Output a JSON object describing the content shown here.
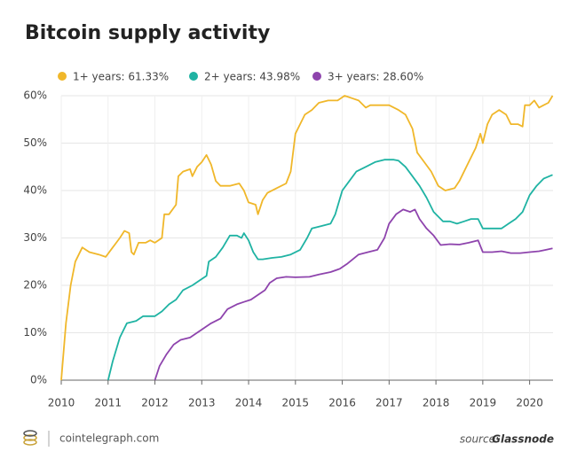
{
  "chart_data": {
    "type": "line",
    "title": "Bitcoin supply activity",
    "xlim": [
      2010,
      2020.5
    ],
    "xticks": [
      2010,
      2011,
      2012,
      2013,
      2014,
      2015,
      2016,
      2017,
      2018,
      2019,
      2020
    ],
    "ylim": [
      0,
      60
    ],
    "yticks": [
      {
        "value": 0,
        "label": "0%"
      },
      {
        "value": 10,
        "label": "10%"
      },
      {
        "value": 20,
        "label": "20%"
      },
      {
        "value": 30,
        "label": "30%"
      },
      {
        "value": 40,
        "label": "40%"
      },
      {
        "value": 50,
        "label": "50%"
      },
      {
        "value": 60,
        "label": "60%"
      }
    ],
    "grid": true,
    "footer_site": "cointelegraph.com",
    "source_prefix": "source:",
    "source_name": "Glassnode",
    "series": [
      {
        "name": "1+ years: 61.33%",
        "color": "#f0b72a",
        "x": [
          2010.0,
          2010.1,
          2010.2,
          2010.3,
          2010.45,
          2010.6,
          2010.8,
          2010.95,
          2011.1,
          2011.25,
          2011.35,
          2011.45,
          2011.5,
          2011.55,
          2011.65,
          2011.8,
          2011.9,
          2012.0,
          2012.15,
          2012.2,
          2012.3,
          2012.45,
          2012.5,
          2012.6,
          2012.75,
          2012.8,
          2012.9,
          2013.0,
          2013.1,
          2013.2,
          2013.3,
          2013.4,
          2013.6,
          2013.8,
          2013.9,
          2014.0,
          2014.15,
          2014.2,
          2014.3,
          2014.4,
          2014.6,
          2014.8,
          2014.9,
          2015.0,
          2015.1,
          2015.2,
          2015.35,
          2015.5,
          2015.7,
          2015.9,
          2016.05,
          2016.2,
          2016.35,
          2016.5,
          2016.6,
          2016.8,
          2017.0,
          2017.2,
          2017.35,
          2017.5,
          2017.6,
          2017.75,
          2017.9,
          2018.05,
          2018.2,
          2018.4,
          2018.5,
          2018.7,
          2018.85,
          2018.95,
          2019.0,
          2019.1,
          2019.2,
          2019.35,
          2019.5,
          2019.6,
          2019.75,
          2019.85,
          2019.9,
          2020.0,
          2020.1,
          2020.2,
          2020.3,
          2020.4,
          2020.49
        ],
        "values": [
          0,
          12,
          20,
          25,
          28,
          27,
          26.5,
          26,
          28,
          30,
          31.5,
          31,
          27,
          26.5,
          29,
          29,
          29.5,
          29,
          30,
          35,
          35,
          37,
          43,
          44,
          44.5,
          43,
          45,
          46,
          47.5,
          45.5,
          42,
          41,
          41,
          41.5,
          40,
          37.5,
          37,
          35,
          38,
          39.5,
          40.5,
          41.5,
          44,
          52,
          54,
          56,
          57,
          58.5,
          59,
          59,
          60,
          59.5,
          59,
          57.5,
          58,
          58,
          58,
          57,
          56,
          53,
          48,
          46,
          44,
          41,
          40,
          40.5,
          42,
          46,
          49,
          52,
          50,
          54,
          56,
          57,
          56,
          54,
          54,
          53.5,
          58,
          58,
          59,
          57.5,
          58,
          58.5,
          60
        ]
      },
      {
        "name": "2+ years: 43.98%",
        "color": "#1fb3a3",
        "x": [
          2011.0,
          2011.1,
          2011.25,
          2011.4,
          2011.6,
          2011.75,
          2011.9,
          2012.0,
          2012.15,
          2012.3,
          2012.45,
          2012.6,
          2012.8,
          2012.95,
          2013.1,
          2013.15,
          2013.3,
          2013.45,
          2013.6,
          2013.75,
          2013.85,
          2013.9,
          2014.0,
          2014.1,
          2014.2,
          2014.3,
          2014.5,
          2014.7,
          2014.9,
          2015.1,
          2015.25,
          2015.35,
          2015.55,
          2015.75,
          2015.85,
          2016.0,
          2016.15,
          2016.3,
          2016.5,
          2016.7,
          2016.9,
          2017.1,
          2017.2,
          2017.35,
          2017.5,
          2017.65,
          2017.8,
          2017.95,
          2018.15,
          2018.3,
          2018.45,
          2018.6,
          2018.75,
          2018.9,
          2019.0,
          2019.2,
          2019.4,
          2019.55,
          2019.7,
          2019.85,
          2020.0,
          2020.15,
          2020.3,
          2020.49
        ],
        "values": [
          0,
          4,
          9,
          12,
          12.5,
          13.5,
          13.5,
          13.5,
          14.5,
          16,
          17,
          19,
          20,
          21,
          22,
          25,
          26,
          28,
          30.5,
          30.5,
          30,
          31,
          29.5,
          27,
          25.5,
          25.5,
          25.8,
          26,
          26.5,
          27.5,
          30,
          32,
          32.5,
          33,
          35,
          40,
          42,
          44,
          45,
          46,
          46.5,
          46.5,
          46.3,
          45,
          43,
          41,
          38.5,
          35.5,
          33.5,
          33.5,
          33,
          33.5,
          34,
          34,
          32,
          32,
          32,
          33,
          34,
          35.5,
          39,
          41,
          42.5,
          43.3
        ]
      },
      {
        "name": "3+ years: 28.60%",
        "color": "#8e44ad",
        "x": [
          2012.0,
          2012.1,
          2012.25,
          2012.4,
          2012.55,
          2012.75,
          2012.9,
          2013.05,
          2013.2,
          2013.4,
          2013.55,
          2013.75,
          2013.9,
          2014.05,
          2014.2,
          2014.35,
          2014.45,
          2014.6,
          2014.8,
          2015.0,
          2015.3,
          2015.5,
          2015.75,
          2015.95,
          2016.1,
          2016.35,
          2016.55,
          2016.75,
          2016.9,
          2017.0,
          2017.15,
          2017.3,
          2017.45,
          2017.55,
          2017.65,
          2017.8,
          2017.95,
          2018.1,
          2018.3,
          2018.5,
          2018.7,
          2018.9,
          2019.0,
          2019.2,
          2019.4,
          2019.6,
          2019.8,
          2020.0,
          2020.2,
          2020.35,
          2020.49
        ],
        "values": [
          0,
          3,
          5.5,
          7.5,
          8.5,
          9,
          10,
          11,
          12,
          13,
          15,
          16,
          16.5,
          17,
          18,
          19,
          20.5,
          21.5,
          21.8,
          21.7,
          21.8,
          22.3,
          22.8,
          23.5,
          24.5,
          26.5,
          27,
          27.5,
          30,
          33,
          35,
          36,
          35.5,
          36,
          34,
          32,
          30.5,
          28.5,
          28.7,
          28.6,
          29,
          29.5,
          27,
          27,
          27.2,
          26.8,
          26.8,
          27,
          27.2,
          27.5,
          27.8
        ]
      }
    ]
  }
}
